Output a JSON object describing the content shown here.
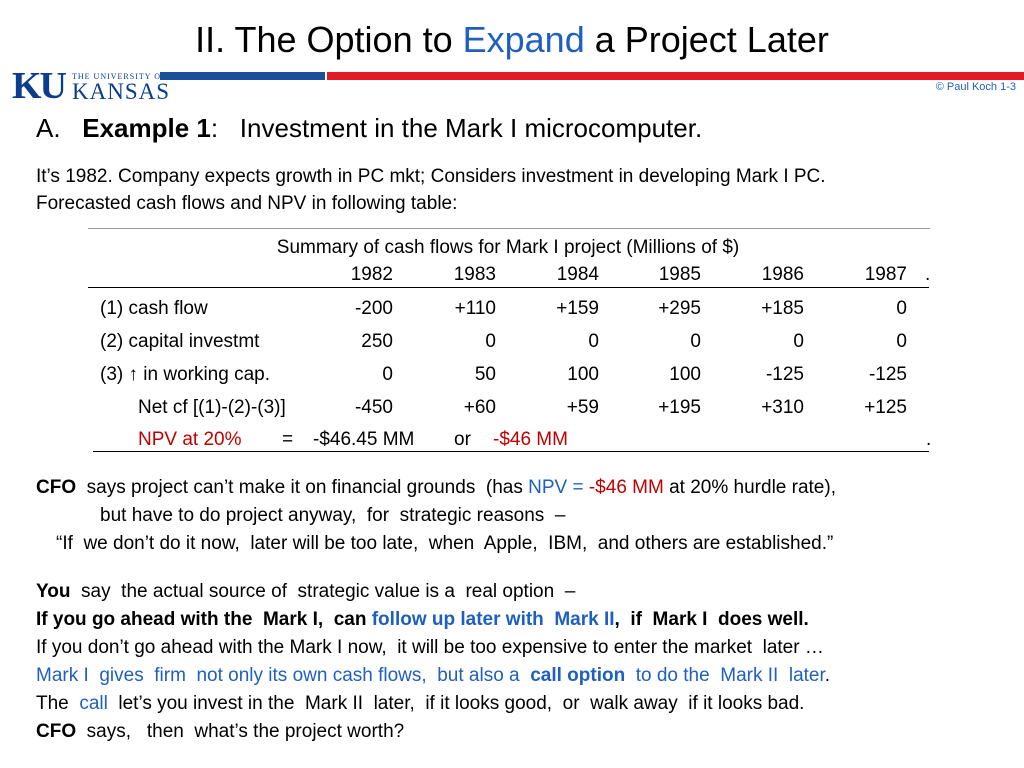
{
  "slide": {
    "title_prefix": "II.  The Option to ",
    "title_highlight": "Expand",
    "title_suffix": " a Project Later",
    "copyright": "© Paul Koch 1-3"
  },
  "logo": {
    "ku": "KU",
    "small": "THE UNIVERSITY OF",
    "big": "KANSAS"
  },
  "section": {
    "letter": "A.",
    "example_label": "Example 1",
    "colon": ":",
    "text": "Investment in the  Mark I  microcomputer."
  },
  "intro": {
    "line1": "It’s 1982.  Company expects growth in PC mkt;  Considers investment in developing Mark I  PC.",
    "line2": "Forecasted cash flows  and  NPV  in following table:"
  },
  "table": {
    "caption": "Summary of cash flows for Mark I project (Millions of $)",
    "years": [
      "1982",
      "1983",
      "1984",
      "1985",
      "1986",
      "1987"
    ],
    "trailing_dot": ".",
    "rows": [
      {
        "label": "(1)  cash flow",
        "values": [
          "-200",
          "+110",
          "+159",
          "+295",
          "+185",
          "0"
        ]
      },
      {
        "label": "(2)  capital investmt",
        "values": [
          "250",
          "0",
          "0",
          "0",
          "0",
          "0"
        ]
      },
      {
        "label_prefix": "(3)  ",
        "arrow": "↑",
        "label_suffix": " in working cap.",
        "values": [
          "0",
          "50",
          "100",
          "100",
          "-125",
          "-125"
        ]
      },
      {
        "label": "Net cf  [(1)-(2)-(3)]",
        "values": [
          "-450",
          "+60",
          "+59",
          "+195",
          "+310",
          "+125"
        ]
      }
    ],
    "npv": {
      "label": "NPV at 20%",
      "equals": "=",
      "value": "-$46.45 MM",
      "or": "or",
      "rounded": "-$46 MM",
      "dot": "."
    }
  },
  "cfo": {
    "label": "CFO",
    "text1": "  says project can’t make it on financial grounds  (has ",
    "npv_blue": "NPV = ",
    "npv_red": "-$46 MM",
    "text2": " at 20% hurdle rate),",
    "line2": "but have to do project anyway,  for  strategic reasons  –",
    "quote": "“If  we don’t do it now,  later will be too late,  when  Apple,  IBM,  and others are established.”"
  },
  "lower": {
    "you_label": "You",
    "you_text": "  say  the actual source of  strategic value is a  real option  –",
    "if_text": "If you go ahead with the  Mark I,  can ",
    "if_blue": "follow up later with  Mark II",
    "if_end": ",  if  Mark I  does well.",
    "dont_text": "If you don’t go ahead with the Mark I now,  it will be too expensive to enter the market  later …",
    "mark_blue1": "Mark I  gives  firm  not only its own cash flows,  but also a  ",
    "mark_call": "call option",
    "mark_blue2": "  to do the  Mark II  later",
    "mark_dot": ".",
    "the_text1": "The  ",
    "the_call": "call",
    "the_text2": "  let’s you invest in the  Mark II  later,  if it looks good,  or  walk away  if it looks bad.",
    "cfo_label": "CFO",
    "cfo_text": "  says,   then  what’s the project worth?"
  }
}
